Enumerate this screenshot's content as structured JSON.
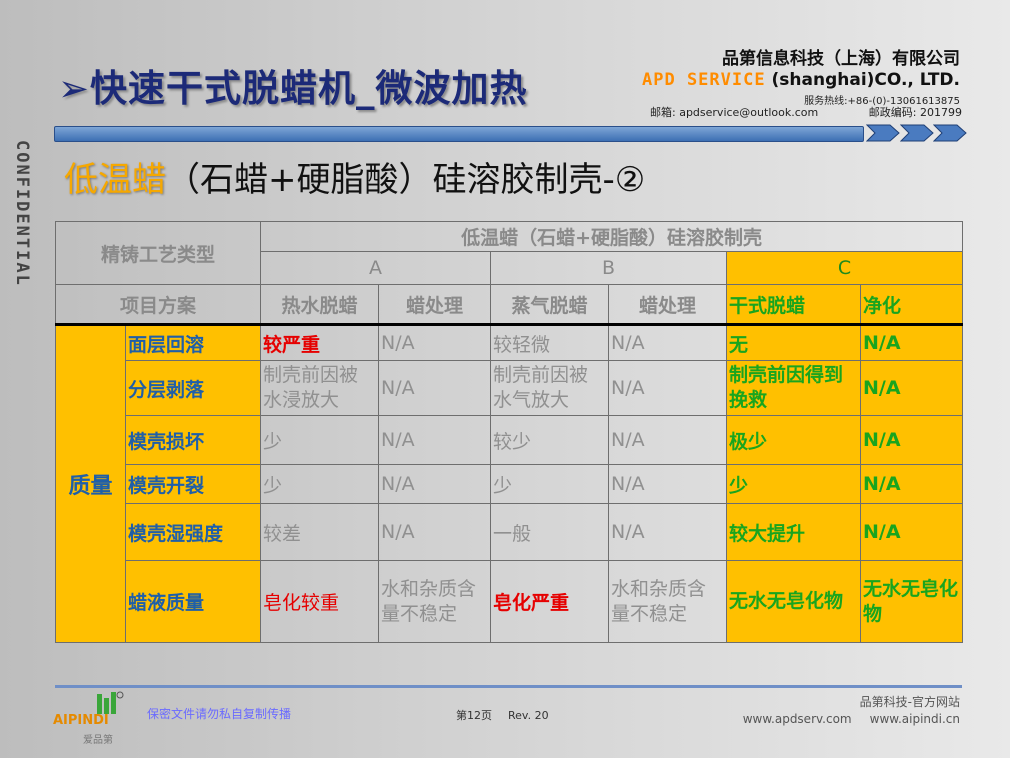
{
  "header": {
    "title": "➢快速干式脱蜡机_微波加热",
    "company_cn": "品第信息科技（上海）有限公司",
    "company_en_brand": "APD SERVICE",
    "company_en_rest": "(shanghai)CO., LTD.",
    "hotline": "服务热线:+86-(0)-13061613875",
    "email": "邮箱: apdservice@outlook.com",
    "postcode": "邮政编码: 201799"
  },
  "side_label": "CONFIDENTIAL",
  "subtitle": {
    "highlight": "低温蜡",
    "rest": "（石蜡+硬脂酸）硅溶胶制壳-②"
  },
  "table": {
    "h_process_type": "精铸工艺类型",
    "h_group": "低温蜡（石蜡+硬脂酸）硅溶胶制壳",
    "h_a": "A",
    "h_b": "B",
    "h_c": "C",
    "h_item": "项目方案",
    "h_cols": [
      "热水脱蜡",
      "蜡处理",
      "蒸气脱蜡",
      "蜡处理",
      "干式脱蜡",
      "净化"
    ],
    "category": "质量",
    "rows": [
      {
        "label": "面层回溶",
        "a1": "较严重",
        "a2": "N/A",
        "b1": "较轻微",
        "b2": "N/A",
        "c1": "无",
        "c2": "N/A"
      },
      {
        "label": "分层剥落",
        "a1": "制壳前因被水浸放大",
        "a2": "N/A",
        "b1": "制壳前因被水气放大",
        "b2": "N/A",
        "c1": "制壳前因得到挽救",
        "c2": "N/A"
      },
      {
        "label": "模壳损坏",
        "a1": "少",
        "a2": "N/A",
        "b1": "较少",
        "b2": "N/A",
        "c1": "极少",
        "c2": "N/A"
      },
      {
        "label": "模壳开裂",
        "a1": "少",
        "a2": "N/A",
        "b1": "少",
        "b2": "N/A",
        "c1": "少",
        "c2": "N/A"
      },
      {
        "label": "模壳湿强度",
        "a1": "较差",
        "a2": "N/A",
        "b1": "一般",
        "b2": "N/A",
        "c1": "较大提升",
        "c2": "N/A"
      },
      {
        "label": "蜡液质量",
        "a1": "皂化较重",
        "a2": "水和杂质含量不稳定",
        "b1": "皂化严重",
        "b2": "水和杂质含量不稳定",
        "c1": "无水无皂化物",
        "c2": "无水无皂化物"
      }
    ]
  },
  "footer": {
    "logo_text": "AIPINDI",
    "logo_sub": "爱品第",
    "notice": "保密文件请勿私自复制传播",
    "page": "第12页",
    "rev": "Rev. 20",
    "site_title": "品第科技-官方网站",
    "url1": "www.apdserv.com",
    "url2": "www.aipindi.cn"
  },
  "colors": {
    "title": "#1c2a78",
    "accent_orange": "#ffc000",
    "label_blue": "#1f5fa8",
    "red": "#e60000",
    "green": "#19a51e"
  }
}
